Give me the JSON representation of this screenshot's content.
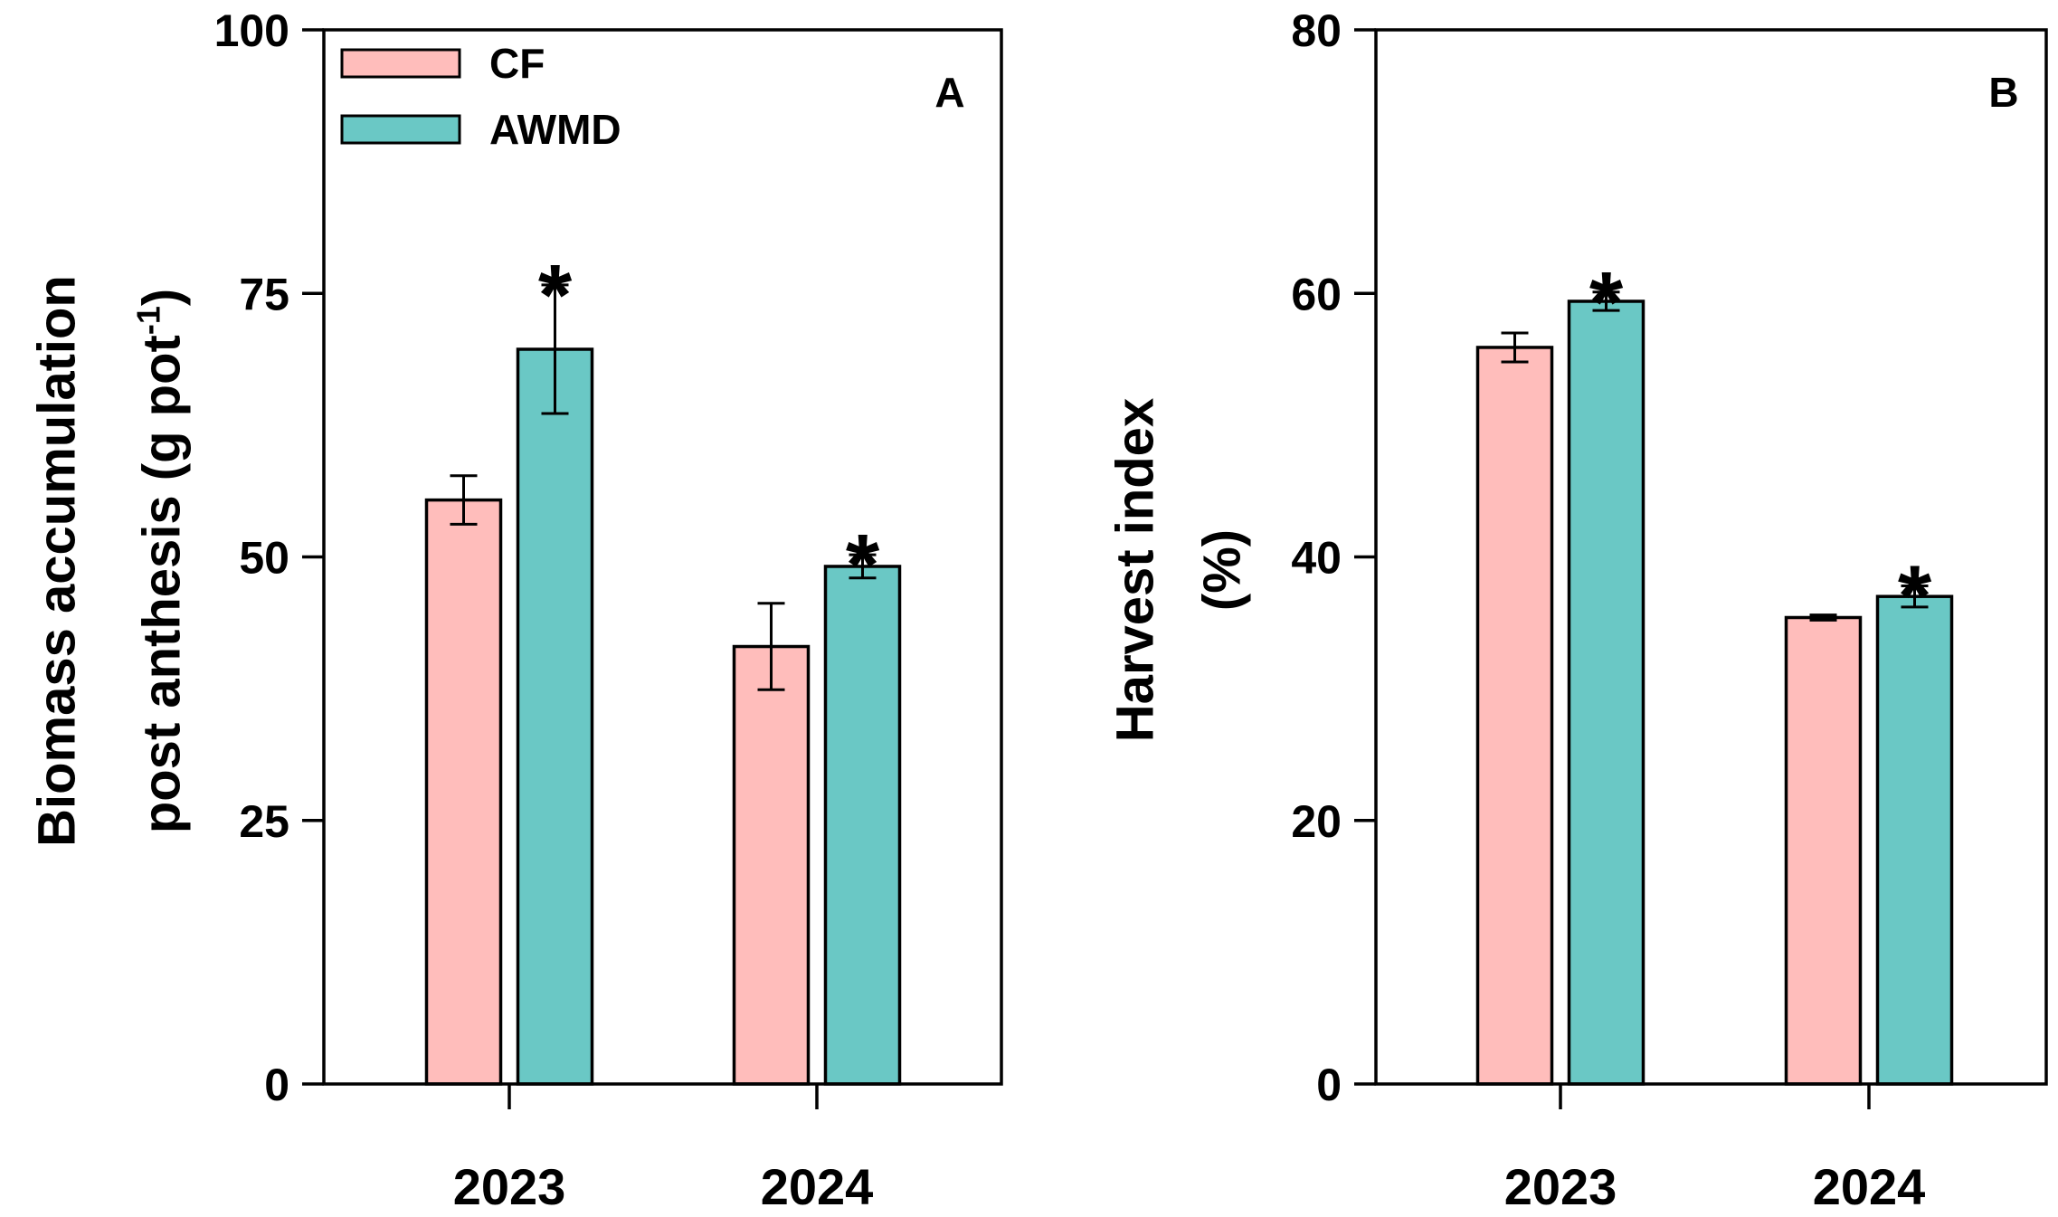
{
  "chart_data": [
    {
      "type": "bar",
      "panel": "A",
      "ylabel_line1": "Biomass accumulation",
      "ylabel_line2_prefix": "post anthesis (g pot",
      "ylabel_line2_sup": "-1",
      "ylabel_line2_suffix": ")",
      "ylim": [
        0,
        100
      ],
      "yticks": [
        0,
        25,
        50,
        75,
        100
      ],
      "categories": [
        "2023",
        "2024"
      ],
      "series": [
        {
          "name": "CF",
          "color": "#ffbdbb",
          "values": [
            55.4,
            41.5
          ],
          "errors": [
            2.3,
            4.1
          ],
          "significant": [
            false,
            false
          ]
        },
        {
          "name": "AWMD",
          "color": "#6ac8c5",
          "values": [
            69.7,
            49.1
          ],
          "errors": [
            6.1,
            1.1
          ],
          "significant": [
            true,
            true
          ]
        }
      ],
      "significance_mark": "*",
      "legend": {
        "position": "top-left",
        "entries": [
          "CF",
          "AWMD"
        ]
      }
    },
    {
      "type": "bar",
      "panel": "B",
      "ylabel_line1": "Harvest index",
      "ylabel_line2": "(%)",
      "ylim": [
        0,
        80
      ],
      "yticks": [
        0,
        20,
        40,
        60,
        80
      ],
      "categories": [
        "2023",
        "2024"
      ],
      "series": [
        {
          "name": "CF",
          "color": "#ffbdbb",
          "values": [
            55.9,
            35.4
          ],
          "errors": [
            1.1,
            0.2
          ],
          "significant": [
            false,
            false
          ]
        },
        {
          "name": "AWMD",
          "color": "#6ac8c5",
          "values": [
            59.4,
            37.0
          ],
          "errors": [
            0.7,
            0.8
          ],
          "significant": [
            true,
            true
          ]
        }
      ],
      "significance_mark": "*"
    }
  ]
}
